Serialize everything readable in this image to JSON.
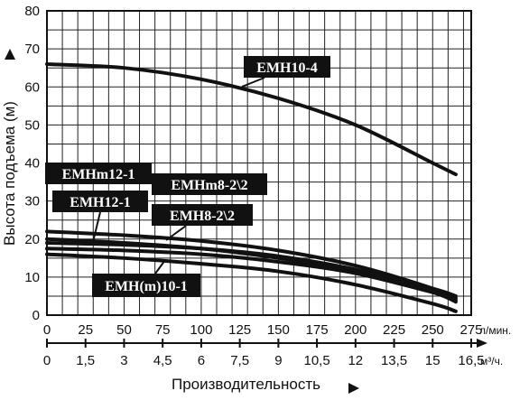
{
  "chart_data": {
    "type": "line",
    "xlabel": "Производительность",
    "ylabel": "Высота подъема (м)",
    "x_unit": "л/мин.",
    "x2_unit": "м³/ч.",
    "xlim": [
      0,
      275
    ],
    "ylim": [
      0,
      80
    ],
    "grid": true,
    "x_ticks": [
      "0",
      "25",
      "50",
      "75",
      "100",
      "125",
      "150",
      "175",
      "200",
      "225",
      "250",
      "275"
    ],
    "x2_ticks": [
      "0",
      "1,5",
      "3",
      "4,5",
      "6",
      "7,5",
      "9",
      "10,5",
      "12",
      "13,5",
      "15",
      "16,5"
    ],
    "y_ticks": [
      "0",
      "10",
      "20",
      "30",
      "40",
      "50",
      "60",
      "70",
      "80"
    ],
    "series": [
      {
        "name": "EMH10-4",
        "x": [
          0,
          50,
          100,
          150,
          200,
          250,
          265
        ],
        "y": [
          66,
          65,
          62,
          57,
          50,
          40,
          37
        ]
      },
      {
        "name": "EMHm12-1",
        "x": [
          0,
          50,
          100,
          150,
          200,
          250,
          265
        ],
        "y": [
          22,
          21,
          19.5,
          17,
          13,
          7,
          4
        ]
      },
      {
        "name": "EMH12-1",
        "x": [
          0,
          50,
          100,
          150,
          200,
          250,
          265
        ],
        "y": [
          20,
          19,
          17.5,
          15,
          11.5,
          6,
          3.5
        ]
      },
      {
        "name": "EMHm8-2\\2",
        "x": [
          0,
          50,
          100,
          150,
          200,
          250,
          265
        ],
        "y": [
          19,
          18.5,
          17.5,
          15.5,
          12,
          7,
          5
        ]
      },
      {
        "name": "EMH8-2\\2",
        "x": [
          0,
          50,
          100,
          150,
          200,
          250,
          265
        ],
        "y": [
          17.5,
          17,
          16,
          14,
          11,
          6,
          4.5
        ]
      },
      {
        "name": "EMH(m)10-1",
        "x": [
          0,
          50,
          100,
          150,
          200,
          250,
          265
        ],
        "y": [
          16,
          15,
          13.5,
          11.5,
          8,
          3,
          1
        ]
      }
    ]
  }
}
